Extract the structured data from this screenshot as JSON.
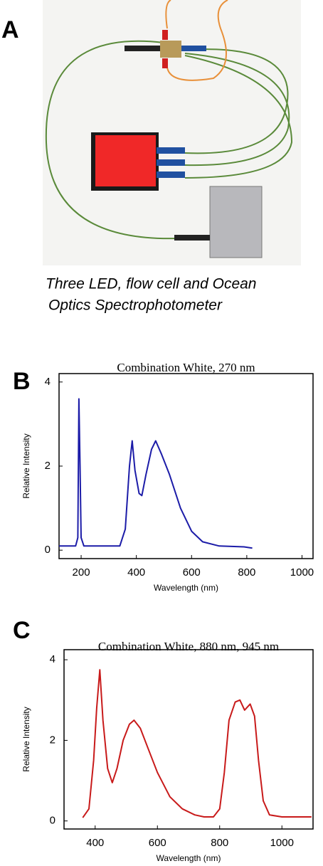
{
  "panel_labels": [
    "A",
    "B",
    "C"
  ],
  "photo": {
    "caption": [
      "Three LED, flow cell and Ocean",
      "Optics Spectrophotometer"
    ]
  },
  "chart_data": [
    {
      "type": "line",
      "title": "Combination White, 270 nm",
      "x_label": "Wavelength (nm)",
      "y_label": "Relative Intensity",
      "color": "#1c1ca8",
      "x": [
        120,
        180,
        188,
        192,
        196,
        200,
        210,
        340,
        360,
        375,
        385,
        395,
        410,
        420,
        435,
        455,
        470,
        490,
        520,
        560,
        600,
        640,
        700,
        790,
        820
      ],
      "values": [
        0.1,
        0.1,
        0.3,
        3.6,
        2.0,
        0.3,
        0.1,
        0.1,
        0.5,
        2.0,
        2.6,
        1.9,
        1.35,
        1.3,
        1.8,
        2.4,
        2.6,
        2.3,
        1.8,
        1.0,
        0.45,
        0.2,
        0.1,
        0.08,
        0.05
      ],
      "xlim": [
        120,
        1040
      ],
      "ylim": [
        -0.2,
        4.2
      ],
      "xticks": [
        200,
        400,
        600,
        800,
        1000
      ],
      "yticks": [
        0,
        2,
        4
      ]
    },
    {
      "type": "line",
      "title": "Combination White, 880 nm, 945 nm",
      "x_label": "Wavelength (nm)",
      "y_label": "Relative Intensity",
      "color": "#c81a1a",
      "x": [
        360,
        380,
        395,
        405,
        415,
        425,
        440,
        455,
        470,
        490,
        510,
        525,
        545,
        570,
        600,
        640,
        680,
        720,
        750,
        780,
        800,
        815,
        830,
        850,
        865,
        880,
        898,
        912,
        925,
        940,
        960,
        1000,
        1095
      ],
      "values": [
        0.08,
        0.3,
        1.5,
        2.8,
        3.75,
        2.5,
        1.3,
        0.95,
        1.3,
        2.0,
        2.4,
        2.5,
        2.3,
        1.8,
        1.2,
        0.6,
        0.3,
        0.15,
        0.1,
        0.1,
        0.3,
        1.2,
        2.5,
        2.95,
        3.0,
        2.75,
        2.9,
        2.6,
        1.5,
        0.5,
        0.15,
        0.1,
        0.1
      ],
      "xlim": [
        300,
        1100
      ],
      "ylim": [
        -0.2,
        4.25
      ],
      "xticks": [
        400,
        600,
        800,
        1000
      ],
      "yticks": [
        0,
        2,
        4
      ]
    }
  ]
}
